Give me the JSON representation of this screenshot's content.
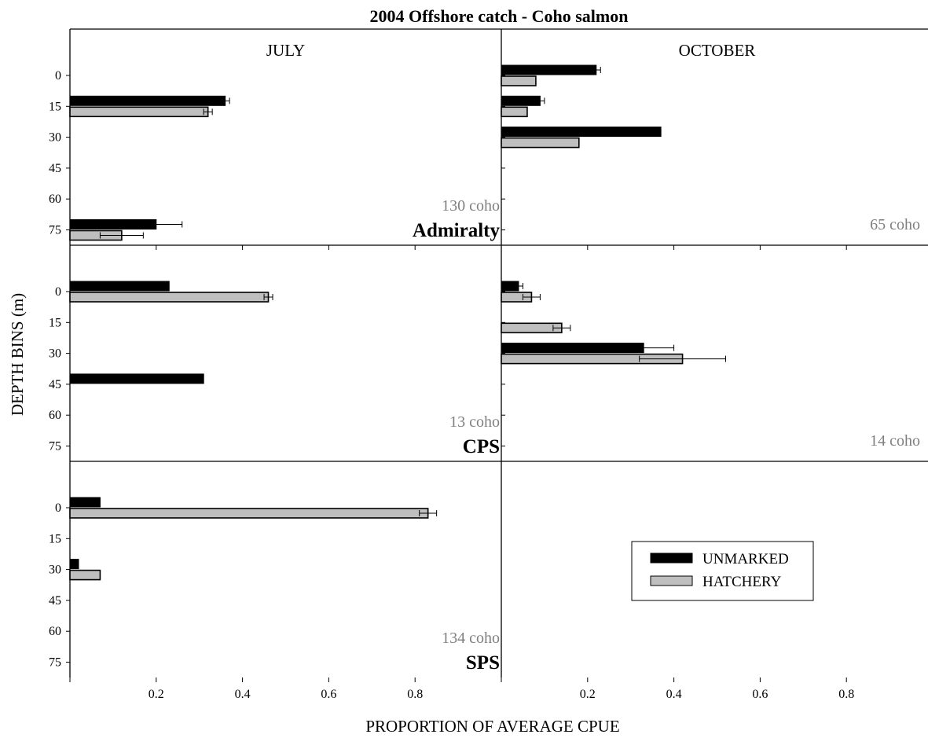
{
  "chart_data": {
    "type": "bar",
    "orientation": "horizontal",
    "title": "2004 Offshore catch - Coho salmon",
    "xlabel": "PROPORTION OF AVERAGE CPUE",
    "ylabel": "DEPTH BINS (m)",
    "xlim": [
      0,
      1.0
    ],
    "x_ticks": [
      "0.2",
      "0.4",
      "0.6",
      "0.8"
    ],
    "y_categories": [
      "0",
      "15",
      "30",
      "45",
      "60",
      "75"
    ],
    "columns": [
      "JULY",
      "OCTOBER"
    ],
    "regions": [
      "Admiralty",
      "CPS",
      "SPS"
    ],
    "legend": {
      "placement": "lower-right",
      "entries": [
        {
          "label": "UNMARKED",
          "color": "#000000"
        },
        {
          "label": "HATCHERY",
          "color": "#bfbfbf"
        }
      ]
    },
    "panels": [
      {
        "month": "JULY",
        "region": "Admiralty",
        "count": "130 coho",
        "series": [
          {
            "name": "UNMARKED",
            "values": [
              0,
              0.36,
              0,
              0,
              0,
              0.2
            ],
            "errors": [
              0,
              0.01,
              0,
              0,
              0,
              0.06
            ]
          },
          {
            "name": "HATCHERY",
            "values": [
              0,
              0.32,
              0,
              0,
              0,
              0.12
            ],
            "errors": [
              0,
              0.01,
              0,
              0,
              0,
              0.05
            ]
          }
        ]
      },
      {
        "month": "OCTOBER",
        "region": "Admiralty",
        "count": "65 coho",
        "series": [
          {
            "name": "UNMARKED",
            "values": [
              0.22,
              0.09,
              0.37,
              0,
              0,
              0
            ],
            "errors": [
              0.01,
              0.01,
              0,
              0,
              0,
              0
            ]
          },
          {
            "name": "HATCHERY",
            "values": [
              0.08,
              0.06,
              0.18,
              0,
              0,
              0
            ],
            "errors": [
              0,
              0,
              0,
              0,
              0,
              0
            ]
          }
        ]
      },
      {
        "month": "JULY",
        "region": "CPS",
        "count": "13 coho",
        "series": [
          {
            "name": "UNMARKED",
            "values": [
              0.23,
              0,
              0,
              0.31,
              0,
              0
            ],
            "errors": [
              0,
              0,
              0,
              0,
              0,
              0
            ]
          },
          {
            "name": "HATCHERY",
            "values": [
              0.46,
              0,
              0,
              0,
              0,
              0
            ],
            "errors": [
              0.01,
              0,
              0,
              0,
              0,
              0
            ]
          }
        ]
      },
      {
        "month": "OCTOBER",
        "region": "CPS",
        "count": "14 coho",
        "series": [
          {
            "name": "UNMARKED",
            "values": [
              0.04,
              0,
              0.33,
              0,
              0,
              0
            ],
            "errors": [
              0.01,
              0,
              0.07,
              0,
              0,
              0
            ]
          },
          {
            "name": "HATCHERY",
            "values": [
              0.07,
              0.14,
              0.42,
              0,
              0,
              0
            ],
            "errors": [
              0.02,
              0.02,
              0.1,
              0,
              0,
              0
            ]
          }
        ]
      },
      {
        "month": "JULY",
        "region": "SPS",
        "count": "134 coho",
        "series": [
          {
            "name": "UNMARKED",
            "values": [
              0.07,
              0,
              0.02,
              0,
              0,
              0
            ],
            "errors": [
              0,
              0,
              0,
              0,
              0,
              0
            ]
          },
          {
            "name": "HATCHERY",
            "values": [
              0.83,
              0,
              0.07,
              0,
              0,
              0
            ],
            "errors": [
              0.02,
              0,
              0,
              0,
              0,
              0
            ]
          }
        ]
      }
    ]
  }
}
